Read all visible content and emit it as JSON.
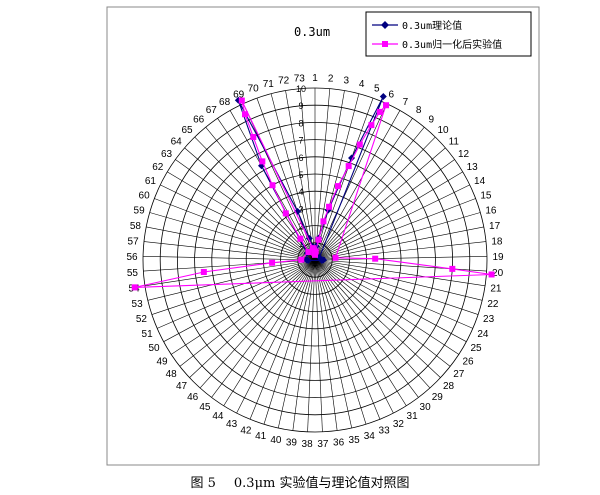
{
  "caption": {
    "figure": "图 5",
    "text": "0.3μm 实验值与理论值对照图"
  },
  "chart_data": {
    "type": "polar",
    "title": "0.3um",
    "categories": [
      "1",
      "2",
      "3",
      "4",
      "5",
      "6",
      "7",
      "8",
      "9",
      "10",
      "11",
      "12",
      "13",
      "14",
      "15",
      "16",
      "17",
      "18",
      "19",
      "20",
      "21",
      "22",
      "23",
      "24",
      "25",
      "26",
      "27",
      "28",
      "29",
      "30",
      "31",
      "32",
      "33",
      "34",
      "35",
      "36",
      "37",
      "38",
      "39",
      "40",
      "41",
      "42",
      "43",
      "44",
      "45",
      "46",
      "47",
      "48",
      "49",
      "50",
      "51",
      "52",
      "53",
      "54",
      "55",
      "56",
      "57",
      "58",
      "59",
      "60",
      "61",
      "62",
      "63",
      "64",
      "65",
      "66",
      "67",
      "68",
      "69",
      "70",
      "71",
      "72",
      "73"
    ],
    "radial_ticks": [
      "1",
      "2",
      "3",
      "4",
      "5",
      "6",
      "7",
      "8",
      "9",
      "10"
    ],
    "rlim": [
      0,
      10
    ],
    "grid": true,
    "legend_position": "top-right",
    "series": [
      {
        "name": "0.3um理论值",
        "color": "#000080",
        "marker": "diamond",
        "points": [
          {
            "c": 1,
            "r": 0.6
          },
          {
            "c": 2,
            "r": 0.8
          },
          {
            "c": 3,
            "r": 1.3
          },
          {
            "c": 4,
            "r": 3.0
          },
          {
            "c": 5,
            "r": 6.3
          },
          {
            "c": 5.6,
            "r": 10.3
          },
          {
            "c": 13,
            "r": 0.3
          },
          {
            "c": 19,
            "r": 0.5
          },
          {
            "c": 20,
            "r": 0.4
          },
          {
            "c": 55,
            "r": 0.4
          },
          {
            "c": 56,
            "r": 0.5
          },
          {
            "c": 64,
            "r": 0.6
          },
          {
            "c": 68,
            "r": 6.3
          },
          {
            "c": 68.8,
            "r": 10.3
          },
          {
            "c": 70,
            "r": 3.0
          },
          {
            "c": 71,
            "r": 1.3
          },
          {
            "c": 72,
            "r": 0.8
          },
          {
            "c": 73,
            "r": 0.6
          }
        ]
      },
      {
        "name": "0.3um归一化后实验值",
        "color": "#ff00ff",
        "marker": "square",
        "points": [
          {
            "c": 1,
            "r": 0.3
          },
          {
            "c": 2,
            "r": 0.5
          },
          {
            "c": 3,
            "r": 1.2
          },
          {
            "c": 3.5,
            "r": 2.3
          },
          {
            "c": 4,
            "r": 3.2
          },
          {
            "c": 4.5,
            "r": 4.5
          },
          {
            "c": 5,
            "r": 5.8
          },
          {
            "c": 5.3,
            "r": 7.2
          },
          {
            "c": 5.6,
            "r": 8.5
          },
          {
            "c": 5.8,
            "r": 9.4
          },
          {
            "c": 6,
            "r": 9.9
          },
          {
            "c": 18,
            "r": 1.2
          },
          {
            "c": 19,
            "r": 3.5
          },
          {
            "c": 20,
            "r": 8.0
          },
          {
            "c": 20.2,
            "r": 10.3
          },
          {
            "c": 54,
            "r": 10.6
          },
          {
            "c": 54.5,
            "r": 6.5
          },
          {
            "c": 55,
            "r": 2.5
          },
          {
            "c": 56,
            "r": 0.8
          },
          {
            "c": 66,
            "r": 0.6
          },
          {
            "c": 67,
            "r": 1.5
          },
          {
            "c": 67.5,
            "r": 3.2
          },
          {
            "c": 68,
            "r": 5.0
          },
          {
            "c": 68.3,
            "r": 6.5
          },
          {
            "c": 68.6,
            "r": 8.0
          },
          {
            "c": 68.8,
            "r": 9.4
          },
          {
            "c": 69,
            "r": 10.2
          },
          {
            "c": 72,
            "r": 0.7
          },
          {
            "c": 73,
            "r": 0.4
          }
        ]
      }
    ]
  }
}
